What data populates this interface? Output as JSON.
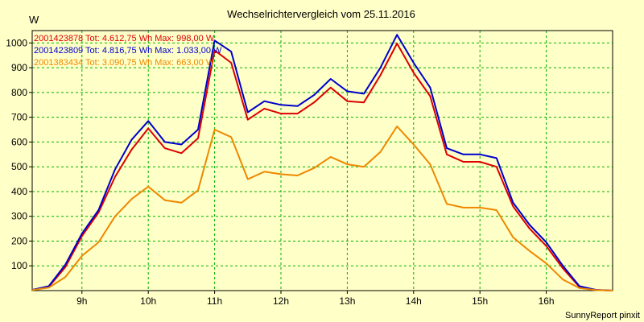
{
  "chart_data": {
    "type": "line",
    "title": "Wechselrichtervergleich vom 25.11.2016",
    "ylabel": "W",
    "xlabel": "",
    "credit": "SunnyReport pinxit",
    "ylim": [
      0,
      1050
    ],
    "xlim": [
      8.25,
      17.0
    ],
    "yticks": [
      100,
      200,
      300,
      400,
      500,
      600,
      700,
      800,
      900,
      1000
    ],
    "xticks": [
      {
        "value": 9,
        "label": "9h"
      },
      {
        "value": 10,
        "label": "10h"
      },
      {
        "value": 11,
        "label": "11h"
      },
      {
        "value": 12,
        "label": "12h"
      },
      {
        "value": 13,
        "label": "13h"
      },
      {
        "value": 14,
        "label": "14h"
      },
      {
        "value": 15,
        "label": "15h"
      },
      {
        "value": 16,
        "label": "16h"
      }
    ],
    "grid": true,
    "x": [
      8.25,
      8.5,
      8.75,
      9.0,
      9.25,
      9.5,
      9.75,
      10.0,
      10.25,
      10.5,
      10.75,
      11.0,
      11.25,
      11.5,
      11.75,
      12.0,
      12.25,
      12.5,
      12.75,
      13.0,
      13.25,
      13.5,
      13.75,
      14.0,
      14.25,
      14.5,
      14.75,
      15.0,
      15.25,
      15.5,
      15.75,
      16.0,
      16.25,
      16.5,
      16.75,
      17.0
    ],
    "series": [
      {
        "name": "2001423878",
        "legend": "2001423878 Tot: 4.612,75 Wh Max: 998,00 W",
        "color": "#dd0000",
        "values": [
          3,
          15,
          95,
          220,
          315,
          460,
          570,
          655,
          575,
          555,
          615,
          970,
          920,
          690,
          735,
          715,
          715,
          760,
          820,
          765,
          760,
          870,
          998,
          880,
          785,
          550,
          520,
          520,
          500,
          340,
          250,
          180,
          90,
          15,
          3,
          0
        ]
      },
      {
        "name": "2001423809",
        "legend": "2001423809 Tot: 4.816,75 Wh Max: 1.033,00 W",
        "color": "#0000cc",
        "values": [
          3,
          18,
          105,
          230,
          325,
          490,
          610,
          685,
          600,
          590,
          650,
          1010,
          965,
          720,
          765,
          750,
          745,
          790,
          855,
          805,
          795,
          900,
          1033,
          920,
          820,
          575,
          550,
          550,
          535,
          355,
          265,
          195,
          100,
          18,
          3,
          0
        ]
      },
      {
        "name": "2001383434",
        "legend": "2001383434 Tot: 3.090,75 Wh Max: 663,00 W",
        "color": "#ee8800",
        "values": [
          2,
          12,
          55,
          140,
          195,
          300,
          370,
          420,
          365,
          355,
          405,
          650,
          620,
          450,
          480,
          470,
          465,
          495,
          540,
          510,
          500,
          560,
          663,
          590,
          510,
          350,
          335,
          335,
          325,
          215,
          160,
          110,
          45,
          10,
          2,
          0
        ]
      }
    ]
  }
}
